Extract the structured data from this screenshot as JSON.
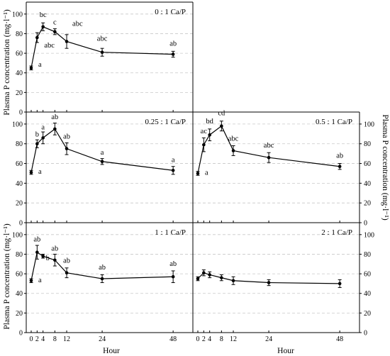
{
  "ylabel_left": "Plasma P concentration (mg·l⁻¹)",
  "ylabel_right": "Plasma P concentration (mg·l⁻¹)",
  "xlabel": "Hour",
  "chart_data": [
    {
      "type": "line",
      "title": "0 : 1 Ca/P",
      "x": [
        0,
        2,
        4,
        8,
        12,
        24,
        48
      ],
      "y": [
        45,
        76,
        87,
        82,
        72,
        61,
        59
      ],
      "err": [
        2,
        5,
        4,
        3,
        7,
        4,
        3
      ],
      "letters": [
        "a",
        "abc",
        "bc",
        "c",
        "abc",
        "abc",
        "ab"
      ],
      "ylim": [
        0,
        110
      ],
      "yticks": [
        0,
        20,
        40,
        60,
        80,
        100
      ],
      "xticks": [],
      "yaxis": "left"
    },
    {
      "type": "line",
      "title": "0.25 : 1 Ca/P",
      "x": [
        0,
        2,
        4,
        8,
        12,
        24,
        48
      ],
      "y": [
        51,
        80,
        86,
        95,
        75,
        62,
        53
      ],
      "err": [
        2,
        4,
        6,
        6,
        6,
        3,
        4
      ],
      "letters": [
        "a",
        "b",
        "a",
        "ab",
        "ab",
        "a",
        "a"
      ],
      "ylim": [
        0,
        110
      ],
      "yticks": [
        0,
        20,
        40,
        60,
        80,
        100
      ],
      "xticks": [],
      "yaxis": "left"
    },
    {
      "type": "line",
      "title": "0.5 : 1 Ca/P",
      "x": [
        0,
        2,
        4,
        8,
        12,
        24,
        48
      ],
      "y": [
        50,
        79,
        89,
        98,
        73,
        66,
        57
      ],
      "err": [
        2,
        7,
        6,
        5,
        5,
        5,
        3
      ],
      "letters": [
        "a",
        "ac",
        "bd",
        "cd",
        "abc",
        "abc",
        "ab"
      ],
      "ylim": [
        0,
        110
      ],
      "yticks": [
        0,
        20,
        40,
        60,
        80,
        100
      ],
      "xticks": [],
      "yaxis": "right"
    },
    {
      "type": "line",
      "title": "1 : 1 Ca/P",
      "x": [
        0,
        2,
        4,
        8,
        12,
        24,
        48
      ],
      "y": [
        53,
        82,
        78,
        74,
        61,
        55,
        57
      ],
      "err": [
        2,
        7,
        2,
        6,
        5,
        4,
        6
      ],
      "letters": [
        "a",
        "ab",
        "b",
        "ab",
        "ab",
        "ab",
        "ab"
      ],
      "ylim": [
        0,
        110
      ],
      "yticks": [
        0,
        20,
        40,
        60,
        80,
        100
      ],
      "xticks": [
        0,
        2,
        4,
        8,
        12,
        24,
        48
      ],
      "yaxis": "left"
    },
    {
      "type": "line",
      "title": "2 : 1 Ca/P",
      "x": [
        0,
        2,
        4,
        8,
        12,
        24,
        48
      ],
      "y": [
        55,
        61,
        59,
        56,
        53,
        51,
        50
      ],
      "err": [
        2,
        3,
        3,
        3,
        4,
        3,
        4
      ],
      "letters": [
        "",
        "",
        "",
        "",
        "",
        "",
        ""
      ],
      "ylim": [
        0,
        110
      ],
      "yticks": [
        0,
        20,
        40,
        60,
        80,
        100
      ],
      "xticks": [
        0,
        2,
        4,
        8,
        12,
        24,
        48
      ],
      "yaxis": "right"
    }
  ]
}
